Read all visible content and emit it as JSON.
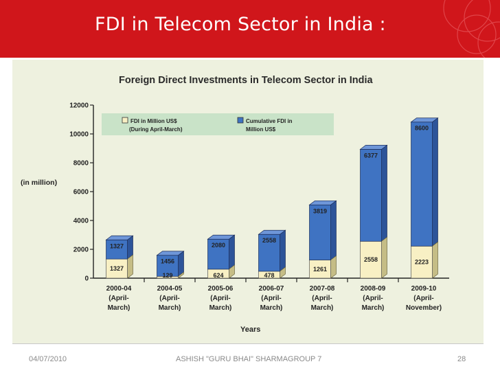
{
  "slide": {
    "title": "FDI in Telecom Sector in India :",
    "footer_date": "04/07/2010",
    "footer_author": "ASHISH \"GURU BHAI\" SHARMAGROUP 7",
    "page_number": "28"
  },
  "colors": {
    "header_red": "#d0161b",
    "chart_background": "#eef1df",
    "legend_background": "#c9e3c8",
    "fdi_bar": "#f8f0c4",
    "cumulative_bar": "#3f73c2"
  },
  "chart_data": {
    "type": "bar",
    "stacked": true,
    "title": "Foreign Direct Investments in Telecom Sector in India",
    "ylabel": "(in million)",
    "xlabel": "Years",
    "ylim": [
      0,
      12000
    ],
    "yticks": [
      0,
      2000,
      4000,
      6000,
      8000,
      10000,
      12000
    ],
    "categories": [
      [
        "2000-04",
        "(April-",
        "March)"
      ],
      [
        "2004-05",
        "(April-",
        "March)"
      ],
      [
        "2005-06",
        "(April-",
        "March)"
      ],
      [
        "2006-07",
        "(April-",
        "March)"
      ],
      [
        "2007-08",
        "(April-",
        "March)"
      ],
      [
        "2008-09",
        "(April-",
        "March)"
      ],
      [
        "2009-10",
        "(April-",
        "November)"
      ]
    ],
    "series": [
      {
        "name": "FDI in Million US$ (During April-March)",
        "values": [
          1327,
          129,
          624,
          478,
          1261,
          2558,
          2223
        ]
      },
      {
        "name": "Cumulative FDI in Million US$",
        "values": [
          1327,
          1456,
          2080,
          2558,
          3819,
          6377,
          8600
        ]
      }
    ],
    "legend": {
      "placement": "top",
      "fdi_line1": "FDI in Million US$",
      "fdi_line2": "(During April-March)",
      "cum_line1": "Cumulative FDI in",
      "cum_line2": "Million US$"
    },
    "grid": false
  }
}
